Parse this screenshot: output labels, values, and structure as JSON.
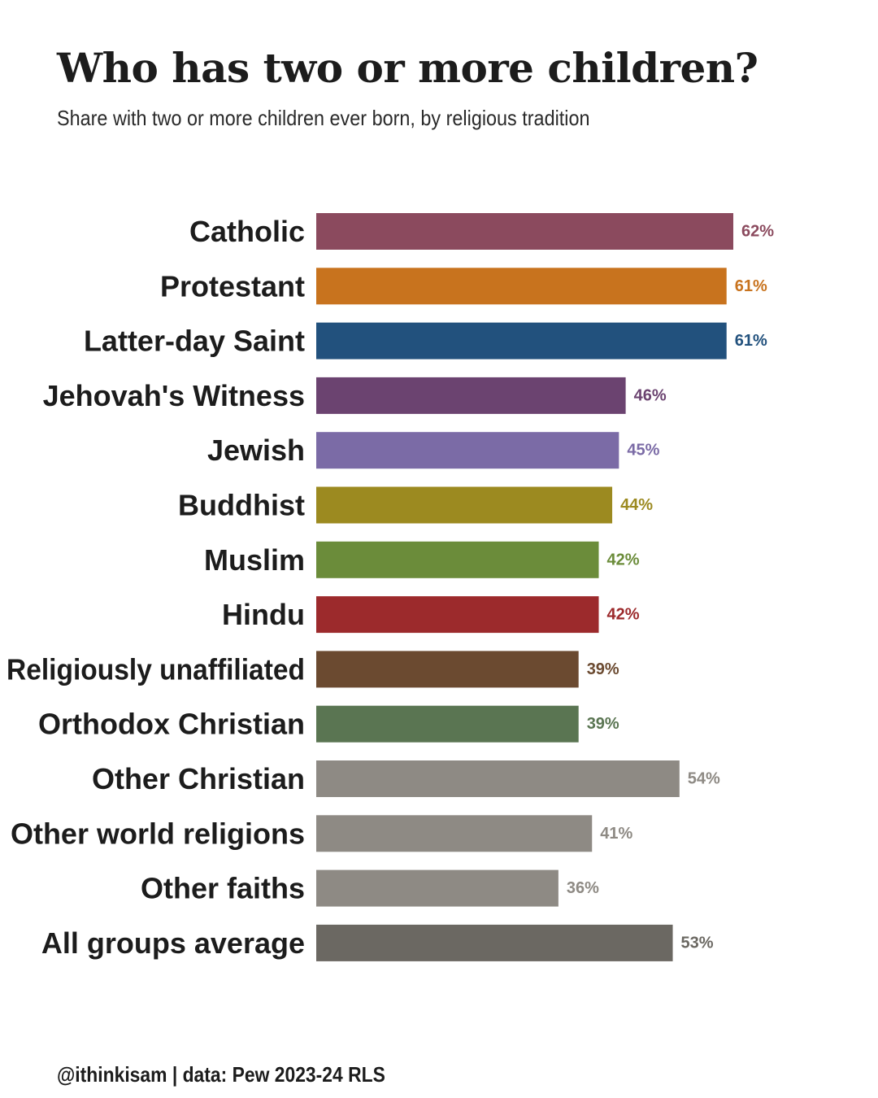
{
  "header": {
    "title": "Who has two or more children?",
    "subtitle": "Share with two or more children ever born, by religious tradition"
  },
  "footer": {
    "credit": "@ithinkisam | data: Pew 2023-24 RLS"
  },
  "chart_data": {
    "type": "bar",
    "orientation": "horizontal",
    "title": "Who has two or more children?",
    "subtitle": "Share with two or more children ever born, by religious tradition",
    "xlabel": "",
    "ylabel": "",
    "xlim": [
      0,
      62
    ],
    "grid": false,
    "legend": "none",
    "value_suffix": "%",
    "categories": [
      "Catholic",
      "Protestant",
      "Latter-day Saint",
      "Jehovah's Witness",
      "Jewish",
      "Buddhist",
      "Muslim",
      "Hindu",
      "Religiously unaffiliated",
      "Orthodox Christian",
      "Other Christian",
      "Other world religions",
      "Other faiths",
      "All groups average"
    ],
    "values": [
      62,
      61,
      61,
      46,
      45,
      44,
      42,
      42,
      39,
      39,
      54,
      41,
      36,
      53
    ],
    "data_labels": [
      "62%",
      "61%",
      "61%",
      "46%",
      "45%",
      "44%",
      "42%",
      "42%",
      "39%",
      "39%",
      "54%",
      "41%",
      "36%",
      "53%"
    ],
    "colors": [
      "#8b4a5e",
      "#c8731e",
      "#22517d",
      "#6b4370",
      "#7b6ba6",
      "#9c8a20",
      "#6b8c3a",
      "#9c2a2c",
      "#6b4a30",
      "#5a7552",
      "#8e8a84",
      "#8e8a84",
      "#8e8a84",
      "#6b6862"
    ]
  }
}
